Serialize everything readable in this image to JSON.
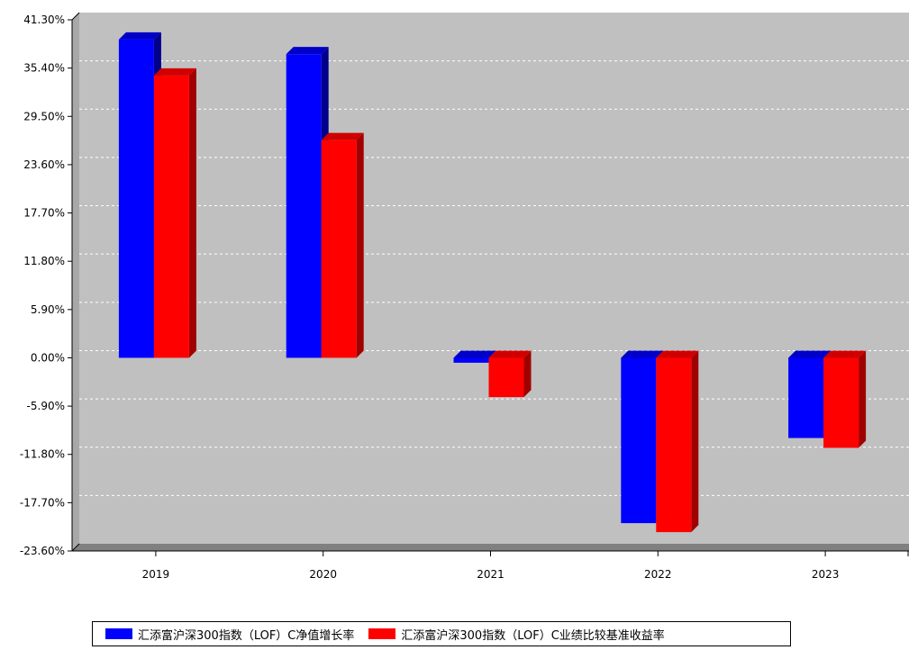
{
  "chart_data": {
    "type": "bar",
    "categories": [
      "2019",
      "2020",
      "2021",
      "2022",
      "2023"
    ],
    "series": [
      {
        "name": "汇添富沪深300指数（LOF）C净值增长率",
        "color": "#0000ff",
        "values": [
          38.9,
          37.1,
          -0.6,
          -20.2,
          -9.8
        ]
      },
      {
        "name": "汇添富沪深300指数（LOF）C业绩比较基准收益率",
        "color": "#ff0000",
        "values": [
          34.5,
          26.6,
          -4.8,
          -21.3,
          -11.0
        ]
      }
    ],
    "yticks": [
      "41.30%",
      "35.40%",
      "29.50%",
      "23.60%",
      "17.70%",
      "11.80%",
      "5.90%",
      "0.00%",
      "-5.90%",
      "-11.80%",
      "-17.70%",
      "-23.60%"
    ],
    "ylim": [
      -23.6,
      41.3
    ],
    "grid": true,
    "legend_position": "bottom",
    "plot_background": "#c0c0c0"
  }
}
